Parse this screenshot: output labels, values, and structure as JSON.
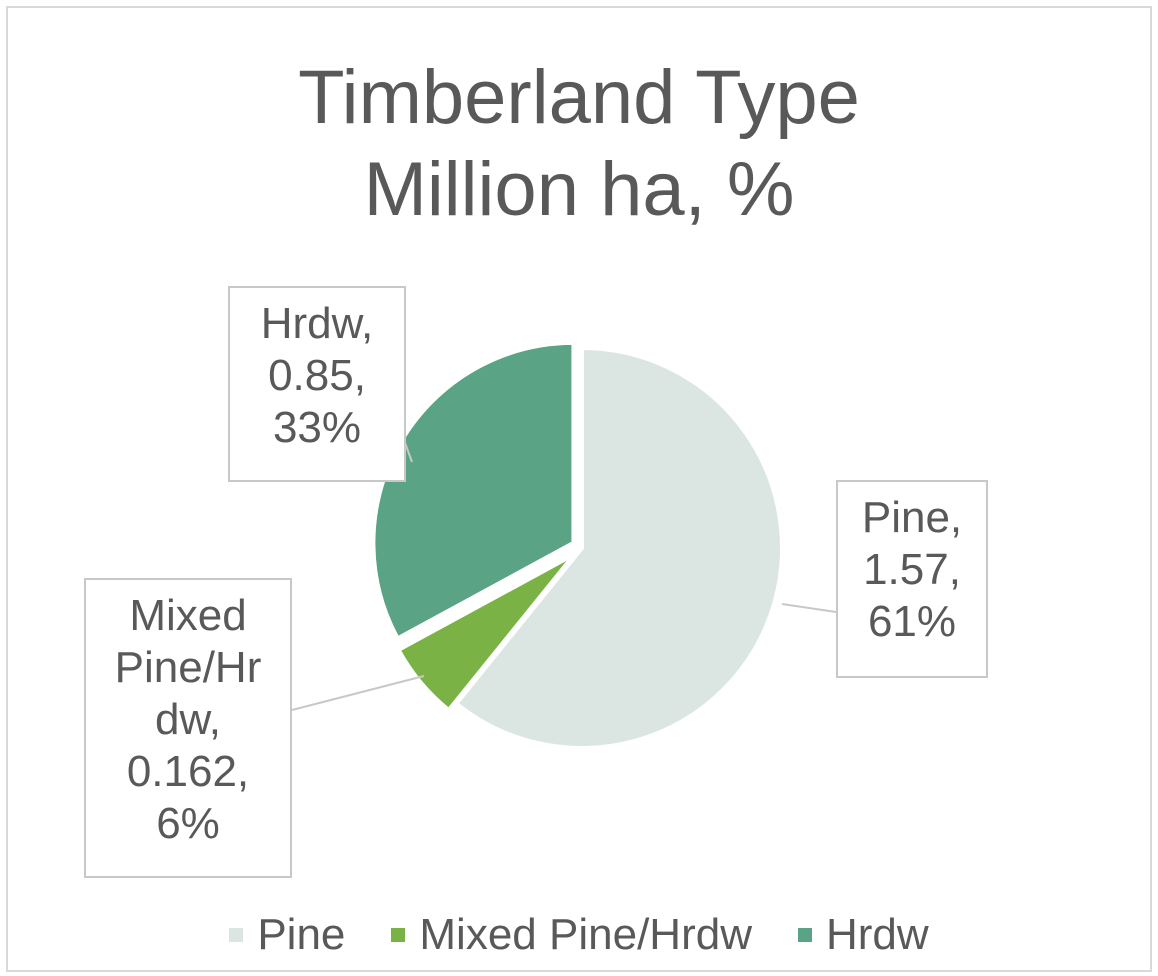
{
  "chart_data": {
    "type": "pie",
    "title_lines": [
      "Timberland Type",
      "Million ha, %"
    ],
    "slices": [
      {
        "label": "Pine",
        "value": 1.57,
        "percent": 61,
        "color": "#dbe6e2",
        "label_lines": [
          "Pine,",
          "1.57,",
          "61%"
        ]
      },
      {
        "label": "Mixed Pine/Hrdw",
        "value": 0.162,
        "percent": 6,
        "color": "#7ab246",
        "label_lines": [
          "Mixed",
          "Pine/Hr",
          "dw,",
          "0.162,",
          "6%"
        ]
      },
      {
        "label": "Hrdw",
        "value": 0.85,
        "percent": 33,
        "color": "#5aa385",
        "label_lines": [
          "Hrdw,",
          "0.85,",
          "33%"
        ]
      }
    ],
    "legend_position": "bottom"
  }
}
